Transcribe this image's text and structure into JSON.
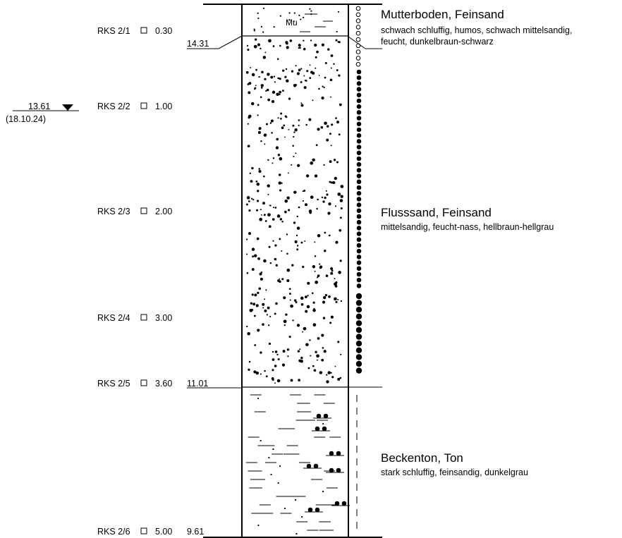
{
  "samples": [
    {
      "label": "RKS 2/1",
      "depth": "0.30"
    },
    {
      "label": "RKS 2/2",
      "depth": "1.00"
    },
    {
      "label": "RKS 2/3",
      "depth": "2.00"
    },
    {
      "label": "RKS 2/4",
      "depth": "3.00"
    },
    {
      "label": "RKS 2/5",
      "depth": "3.60"
    },
    {
      "label": "RKS 2/6",
      "depth": "5.00"
    }
  ],
  "boundaries": [
    {
      "elevation": "14.31"
    },
    {
      "elevation": "11.01"
    },
    {
      "elevation": "9.61"
    }
  ],
  "groundwater": {
    "elevation": "13.61",
    "date": "(18.10.24)"
  },
  "layers": [
    {
      "title": "Mutterboden, Feinsand",
      "desc_lines": [
        "schwach schluffig, humos, schwach mittelsandig,",
        "feucht, dunkelbraun-schwarz"
      ],
      "symbol": "Mu"
    },
    {
      "title": "Flusssand, Feinsand",
      "desc_lines": [
        "mittelsandig, feucht-nass, hellbraun-hellgrau"
      ]
    },
    {
      "title": "Beckenton, Ton",
      "desc_lines": [
        "stark schluffig, feinsandig, dunkelgrau"
      ]
    }
  ]
}
